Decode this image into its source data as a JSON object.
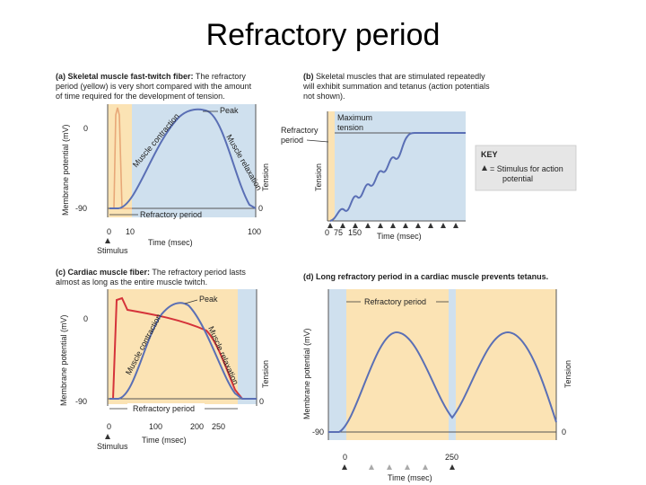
{
  "title": "Refractory period",
  "panel_a": {
    "caption_bold": "(a) Skeletal muscle fast-twitch fiber:",
    "caption_rest": [
      " The refractory",
      "period (yellow) is very short compared with the amount",
      "of time required for the development of tension."
    ],
    "y_left": "Membrane potential (mV)",
    "y_right": "Tension",
    "tick_0": "0",
    "tick_neg90": "-90",
    "tick_right_0": "0",
    "peak": "Peak",
    "contraction": "Muscle contraction",
    "relaxation": "Muscle relaxation",
    "refractory": "Refractory period",
    "x_ticks": [
      "0",
      "10",
      "100"
    ],
    "x_label": "Time (msec)",
    "stimulus": "Stimulus"
  },
  "panel_b": {
    "caption_bold": "(b)",
    "caption_rest": [
      " Skeletal muscles that are stimulated repeatedly",
      "will exhibit summation and tetanus (action potentials",
      "not shown)."
    ],
    "max_tension": [
      "Maximum",
      "tension"
    ],
    "refractory": [
      "Refractory",
      "period"
    ],
    "y_label": "Tension",
    "x_ticks": [
      "0",
      "75",
      "150"
    ],
    "x_label": "Time (msec)"
  },
  "key": {
    "title": "KEY",
    "text_line1": "= Stimulus for action",
    "text_line2": "potential"
  },
  "panel_c": {
    "caption_bold": "(c) Cardiac muscle fiber:",
    "caption_rest": [
      " The refractory period lasts",
      "almost as long as the entire muscle twitch."
    ],
    "y_left": "Membrane potential (mV)",
    "y_right": "Tension",
    "tick_0": "0",
    "tick_neg90": "-90",
    "tick_right_0": "0",
    "peak": "Peak",
    "contraction": "Muscle contraction",
    "relaxation": "Muscle relaxation",
    "refractory": "Refractory period",
    "x_ticks": [
      "0",
      "100",
      "200",
      "250"
    ],
    "x_label": "Time (msec)",
    "stimulus": "Stimulus"
  },
  "panel_d": {
    "caption_bold": "(d) Long refractory period in a cardiac muscle prevents tetanus.",
    "y_left": "Membrane potential (mV)",
    "y_right": "Tension",
    "refractory": "Refractory period",
    "tick_neg90": "-90",
    "tick_right_0": "0",
    "x_ticks": [
      "0",
      "250"
    ],
    "x_label": "Time (msec)"
  },
  "colors": {
    "blue_bg": "#cfe0ee",
    "yellow_bg": "#fbe3b4",
    "blue_line": "#5a6fb5",
    "red_line": "#d5333a",
    "peach_line": "#e8a878"
  }
}
